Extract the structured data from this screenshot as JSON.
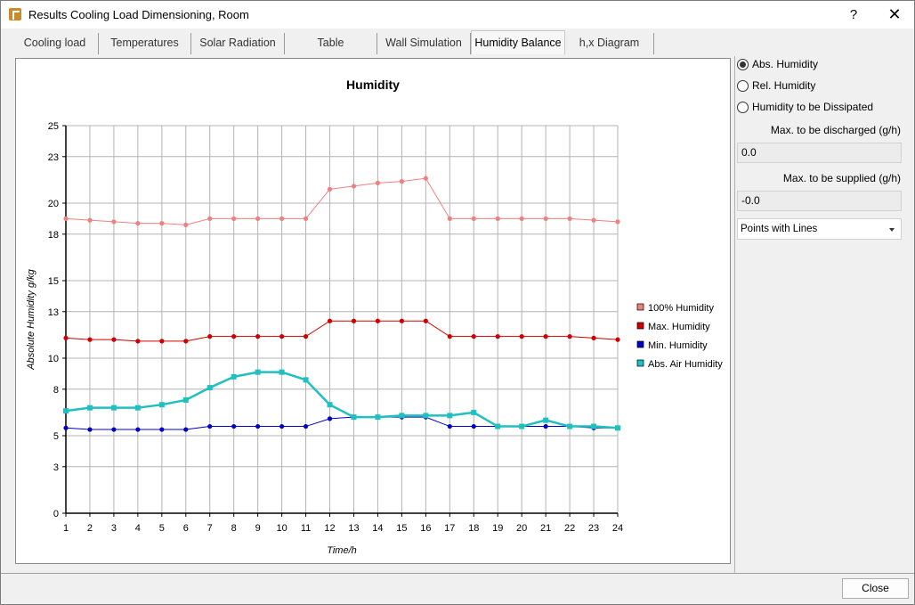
{
  "window": {
    "title": "Results Cooling Load Dimensioning, Room",
    "help_label": "?",
    "close_label": "✕"
  },
  "tabs": [
    {
      "label": "Cooling load"
    },
    {
      "label": "Temperatures"
    },
    {
      "label": "Solar Radiation"
    },
    {
      "label": "Table"
    },
    {
      "label": "Wall Simulation"
    },
    {
      "label": "Humidity Balance"
    },
    {
      "label": "h,x Diagram"
    }
  ],
  "side": {
    "radios": [
      {
        "label": "Abs. Humidity",
        "checked": true
      },
      {
        "label": "Rel. Humidity",
        "checked": false
      },
      {
        "label": "Humidity to be Dissipated",
        "checked": false
      }
    ],
    "discharged_label": "Max. to be discharged (g/h)",
    "discharged_value": "0.0",
    "supplied_label": "Max. to be supplied (g/h)",
    "supplied_value": "-0.0",
    "style_select": "Points with Lines"
  },
  "footer": {
    "close_label": "Close"
  },
  "chart_data": {
    "type": "line",
    "title": "Humidity",
    "xlabel": "Time/h",
    "ylabel": "Absolute Humidity g/kg",
    "x": [
      1,
      2,
      3,
      4,
      5,
      6,
      7,
      8,
      9,
      10,
      11,
      12,
      13,
      14,
      15,
      16,
      17,
      18,
      19,
      20,
      21,
      22,
      23,
      24
    ],
    "xlim": [
      1,
      24
    ],
    "ylim": [
      0,
      25
    ],
    "yticks": [
      0,
      3,
      5,
      8,
      10,
      13,
      15,
      18,
      20,
      23,
      25
    ],
    "grid": true,
    "legend": "right",
    "series": [
      {
        "name": "100% Humidity",
        "color": "#f08080",
        "values": [
          19.0,
          18.9,
          18.8,
          18.7,
          18.7,
          18.6,
          19.0,
          19.0,
          19.0,
          19.0,
          19.0,
          20.9,
          21.1,
          21.3,
          21.4,
          21.6,
          19.0,
          19.0,
          19.0,
          19.0,
          19.0,
          19.0,
          18.9,
          18.8
        ]
      },
      {
        "name": "Max. Humidity",
        "color": "#d00000",
        "values": [
          11.3,
          11.2,
          11.2,
          11.1,
          11.1,
          11.1,
          11.4,
          11.4,
          11.4,
          11.4,
          11.4,
          12.4,
          12.4,
          12.4,
          12.4,
          12.4,
          11.4,
          11.4,
          11.4,
          11.4,
          11.4,
          11.4,
          11.3,
          11.2
        ]
      },
      {
        "name": "Min. Humidity",
        "color": "#0000c8",
        "values": [
          5.5,
          5.4,
          5.4,
          5.4,
          5.4,
          5.4,
          5.6,
          5.6,
          5.6,
          5.6,
          5.6,
          6.1,
          6.2,
          6.2,
          6.2,
          6.2,
          5.6,
          5.6,
          5.6,
          5.6,
          5.6,
          5.6,
          5.5,
          5.5
        ]
      },
      {
        "name": "Abs. Air Humidity",
        "color": "#20c0c0",
        "values": [
          6.6,
          6.8,
          6.8,
          6.8,
          7.0,
          7.3,
          8.1,
          8.8,
          9.1,
          9.1,
          8.6,
          7.0,
          6.2,
          6.2,
          6.3,
          6.3,
          6.3,
          6.5,
          5.6,
          5.6,
          6.0,
          5.6,
          5.6,
          5.5
        ]
      }
    ]
  }
}
